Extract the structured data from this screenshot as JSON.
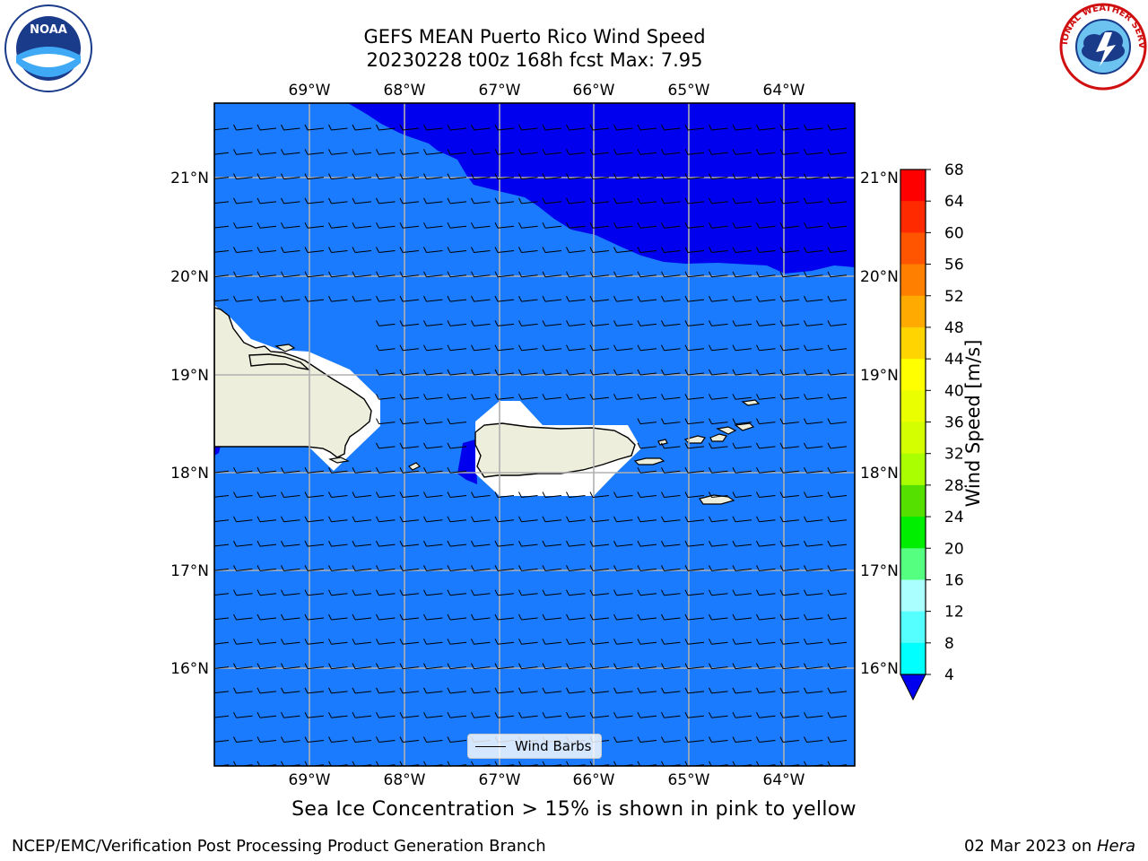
{
  "title": {
    "line1": "GEFS MEAN Puerto Rico Wind Speed",
    "line2": "20230228 t00z 168h fcst   Max: 7.95"
  },
  "map": {
    "lon_labels": [
      "69°W",
      "68°W",
      "67°W",
      "66°W",
      "65°W",
      "64°W"
    ],
    "lat_labels": [
      "21°N",
      "20°N",
      "19°N",
      "18°N",
      "17°N",
      "16°N"
    ],
    "ocean_color": "#1a7bff",
    "high_wind_color": "#0000ee",
    "land_color": "#eeeedc",
    "grid_color": "#b0b0b0",
    "legend_label": "Wind Barbs"
  },
  "colorbar": {
    "label": "Wind Speed [m/s]",
    "ticks": [
      "68",
      "64",
      "60",
      "56",
      "52",
      "48",
      "44",
      "40",
      "36",
      "32",
      "28",
      "24",
      "20",
      "16",
      "12",
      "8",
      "4"
    ],
    "colors": [
      "#ff0000",
      "#ff2a00",
      "#ff5500",
      "#ff8000",
      "#ffaa00",
      "#ffd400",
      "#ffff00",
      "#eaff00",
      "#d4ff00",
      "#aaff00",
      "#55e000",
      "#00ee00",
      "#55ff80",
      "#aaffff",
      "#55ffff",
      "#00ffff",
      "#0080ff"
    ],
    "extend_color": "#0000ee"
  },
  "sea_ice_note": "Sea Ice Concentration > 15% is shown in pink to yellow",
  "footer": {
    "left": "NCEP/EMC/Verification Post Processing Product Generation Branch",
    "date": "02 Mar 2023 on ",
    "machine": "Hera"
  },
  "logos": {
    "noaa": "NOAA",
    "nws": "NATIONAL WEATHER SERVICE"
  }
}
